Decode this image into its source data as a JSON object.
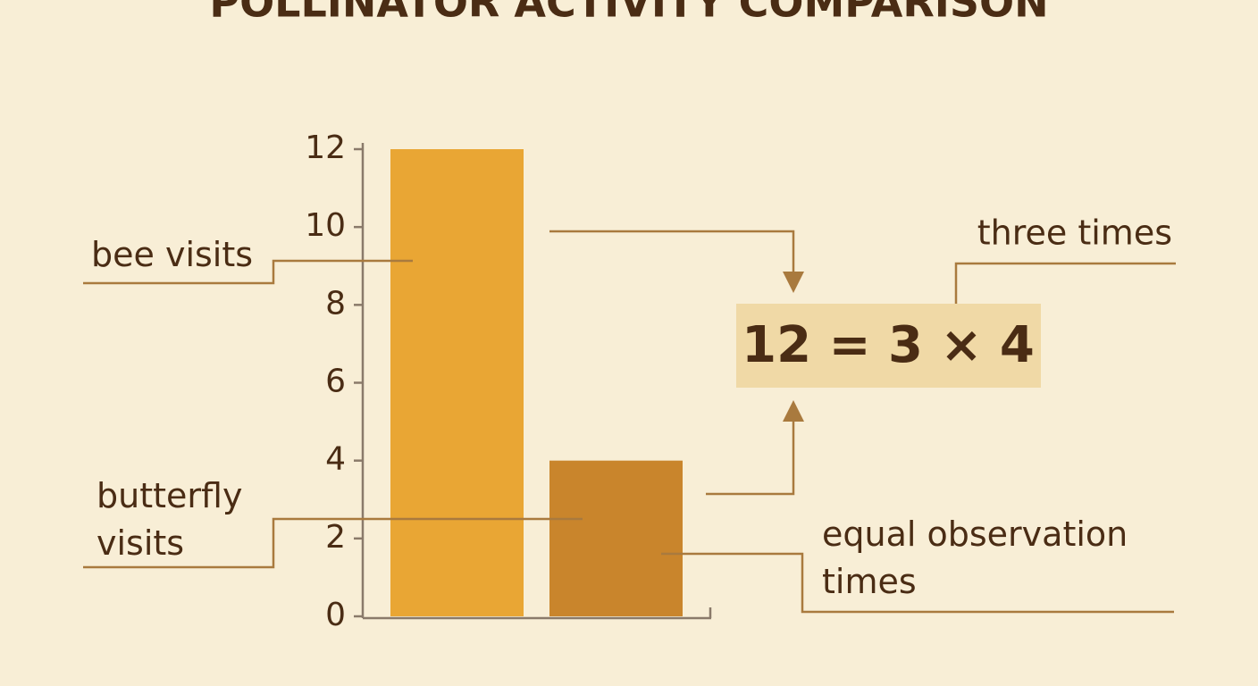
{
  "chart_data": {
    "type": "bar",
    "title": "POLLINATOR ACTIVITY COMPARISON",
    "categories": [
      "bee visits",
      "butterfly visits"
    ],
    "values": [
      12,
      4
    ],
    "colors": [
      "#e9a634",
      "#c9852c"
    ],
    "ylim": [
      0,
      12
    ],
    "yticks": [
      0,
      2,
      4,
      6,
      8,
      10,
      12
    ],
    "grid": false,
    "annotations": [
      "three times",
      "12 = 3 × 4",
      "equal observation times"
    ]
  }
}
